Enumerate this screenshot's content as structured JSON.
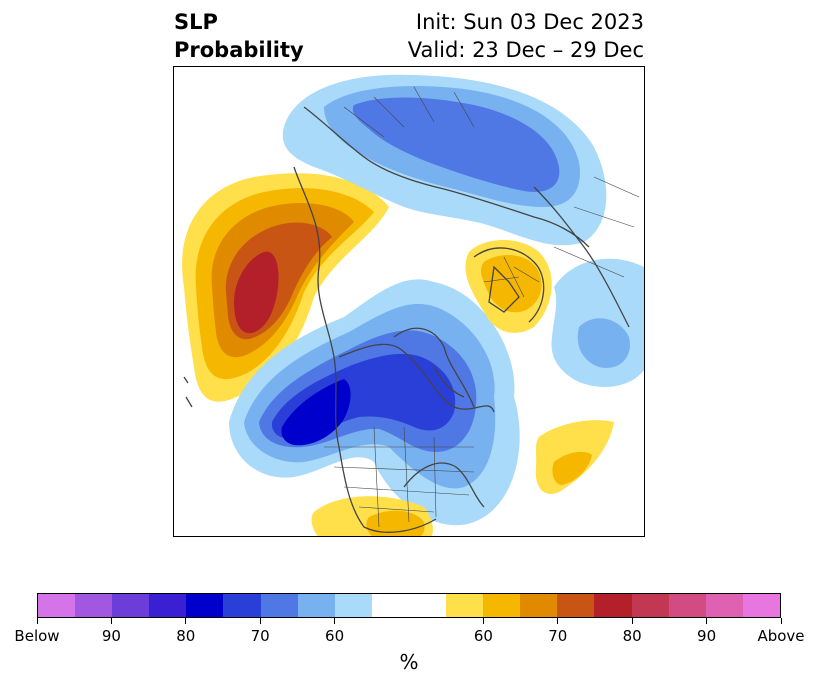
{
  "title": {
    "left_line1": "SLP",
    "left_line2": "Probability",
    "right_line1": "Init: Sun 03 Dec 2023",
    "right_line2": "Valid: 23 Dec – 29 Dec"
  },
  "colorbar": {
    "unit": "%",
    "below_colors": [
      "#d574e8",
      "#a157e0",
      "#6c3dd9",
      "#3a1fd3",
      "#0000cc",
      "#2a3fd8",
      "#4f78e4",
      "#78b1f0",
      "#a9dafa"
    ],
    "above_colors": [
      "#ffdf4a",
      "#f5b700",
      "#e08a00",
      "#c85514",
      "#b3202a",
      "#c23752",
      "#d24c83",
      "#df62b2",
      "#e876e0"
    ],
    "tick_labels": [
      "Below",
      "90",
      "80",
      "70",
      "60",
      "60",
      "70",
      "80",
      "90",
      "Above"
    ]
  },
  "map_colors": {
    "blue_light": "#a9dafa",
    "blue_mid": "#78b1f0",
    "blue_medium": "#4f78e4",
    "blue_strong": "#2a3fd8",
    "blue_deep": "#0000cc",
    "yellow": "#ffdf4a",
    "gold": "#f5b700",
    "orange": "#e08a00",
    "rust": "#c85514",
    "red": "#b3202a",
    "coast": "#444444"
  }
}
